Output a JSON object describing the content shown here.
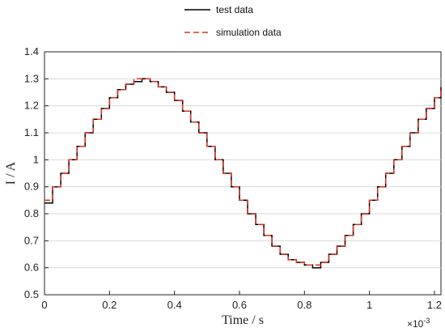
{
  "chart_data": {
    "type": "line",
    "title": "",
    "xlabel": "Time / s",
    "ylabel": "I / A",
    "x_exponent_label": "×10",
    "x_exponent_power": "-3",
    "xlim": [
      0,
      1.22
    ],
    "ylim": [
      0.5,
      1.4
    ],
    "xticks": [
      0,
      0.2,
      0.4,
      0.6,
      0.8,
      1,
      1.2
    ],
    "xtick_labels": [
      "0",
      "0.2",
      "0.4",
      "0.6",
      "0.8",
      "1",
      "1.2"
    ],
    "yticks": [
      0.5,
      0.6,
      0.7,
      0.8,
      0.9,
      1.0,
      1.1,
      1.2,
      1.3,
      1.4
    ],
    "ytick_labels": [
      "0.5",
      "0.6",
      "0.7",
      "0.8",
      "0.9",
      "1",
      "1.1",
      "1.2",
      "1.3",
      "1.4"
    ],
    "grid": "horizontal",
    "legend_position": "top-center",
    "series": [
      {
        "name": "test data",
        "color": "#000000",
        "style": "solid",
        "x": [
          0,
          0.025,
          0.05,
          0.075,
          0.1,
          0.125,
          0.15,
          0.175,
          0.2,
          0.225,
          0.25,
          0.275,
          0.3,
          0.325,
          0.35,
          0.375,
          0.4,
          0.425,
          0.45,
          0.475,
          0.5,
          0.525,
          0.55,
          0.575,
          0.6,
          0.625,
          0.65,
          0.675,
          0.7,
          0.725,
          0.75,
          0.775,
          0.8,
          0.825,
          0.85,
          0.875,
          0.9,
          0.925,
          0.95,
          0.975,
          1.0,
          1.025,
          1.05,
          1.075,
          1.1,
          1.125,
          1.15,
          1.175,
          1.2,
          1.22
        ],
        "y": [
          0.84,
          0.9,
          0.95,
          1.0,
          1.05,
          1.1,
          1.15,
          1.19,
          1.23,
          1.26,
          1.28,
          1.29,
          1.3,
          1.29,
          1.27,
          1.25,
          1.22,
          1.18,
          1.14,
          1.1,
          1.05,
          1.0,
          0.95,
          0.9,
          0.85,
          0.8,
          0.76,
          0.72,
          0.68,
          0.65,
          0.63,
          0.62,
          0.61,
          0.6,
          0.62,
          0.65,
          0.68,
          0.72,
          0.76,
          0.8,
          0.85,
          0.9,
          0.95,
          1.0,
          1.05,
          1.1,
          1.15,
          1.19,
          1.23,
          1.27
        ]
      },
      {
        "name": "simulation data",
        "color": "#e03020",
        "style": "dashed",
        "x": [
          0,
          0.025,
          0.05,
          0.075,
          0.1,
          0.125,
          0.15,
          0.175,
          0.2,
          0.225,
          0.25,
          0.275,
          0.3,
          0.325,
          0.35,
          0.375,
          0.4,
          0.425,
          0.45,
          0.475,
          0.5,
          0.525,
          0.55,
          0.575,
          0.6,
          0.625,
          0.65,
          0.675,
          0.7,
          0.725,
          0.75,
          0.775,
          0.8,
          0.825,
          0.85,
          0.875,
          0.9,
          0.925,
          0.95,
          0.975,
          1.0,
          1.025,
          1.05,
          1.075,
          1.1,
          1.125,
          1.15,
          1.175,
          1.2,
          1.22
        ],
        "y": [
          0.85,
          0.9,
          0.95,
          1.0,
          1.05,
          1.1,
          1.15,
          1.19,
          1.23,
          1.26,
          1.28,
          1.3,
          1.3,
          1.29,
          1.27,
          1.25,
          1.22,
          1.18,
          1.14,
          1.1,
          1.05,
          1.0,
          0.95,
          0.9,
          0.85,
          0.8,
          0.76,
          0.72,
          0.68,
          0.65,
          0.63,
          0.62,
          0.61,
          0.61,
          0.62,
          0.65,
          0.68,
          0.72,
          0.76,
          0.8,
          0.85,
          0.9,
          0.95,
          1.0,
          1.05,
          1.1,
          1.15,
          1.19,
          1.23,
          1.27
        ]
      }
    ]
  }
}
